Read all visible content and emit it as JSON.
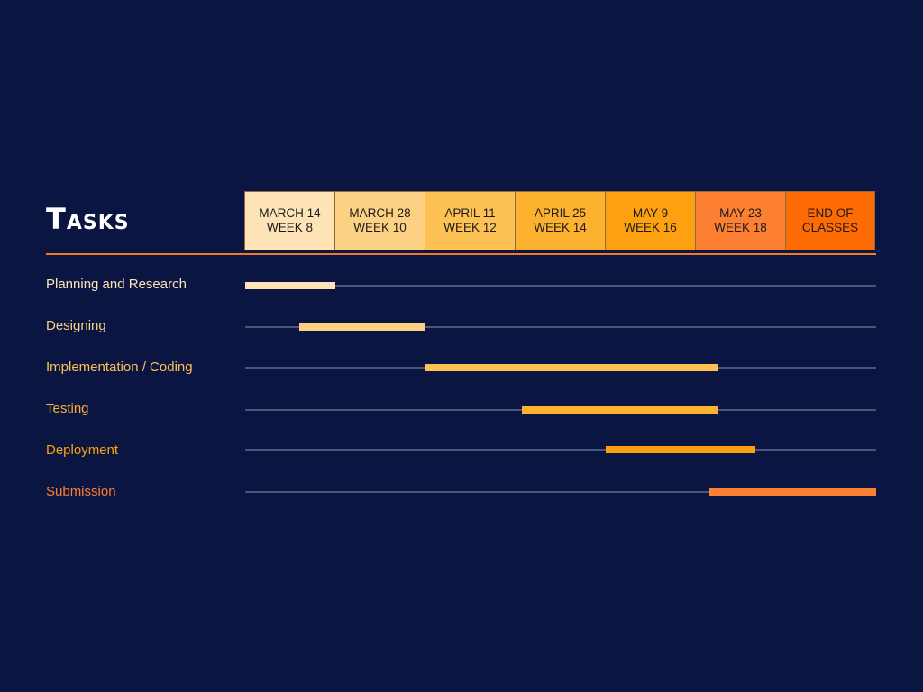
{
  "chart_data": {
    "type": "gantt",
    "title": "Tasks",
    "columns": [
      {
        "line1": "MARCH 14",
        "line2": "WEEK 8",
        "color": "#fde3b6"
      },
      {
        "line1": "MARCH 28",
        "line2": "WEEK 10",
        "color": "#fdd183"
      },
      {
        "line1": "APRIL 11",
        "line2": "WEEK 12",
        "color": "#fec254"
      },
      {
        "line1": "APRIL 25",
        "line2": "WEEK 14",
        "color": "#fcb12f"
      },
      {
        "line1": "MAY 9",
        "line2": "WEEK 16",
        "color": "#fda110"
      },
      {
        "line1": "MAY 23",
        "line2": "WEEK 18",
        "color": "#fd7f32"
      },
      {
        "line1": "END OF",
        "line2": "CLASSES",
        "color": "#fe6b04"
      }
    ],
    "tasks": [
      {
        "name": "Planning and Research",
        "start": 0.0,
        "end": 1.0,
        "color": "#fde3b6"
      },
      {
        "name": "Designing",
        "start": 0.6,
        "end": 2.0,
        "color": "#fdd183"
      },
      {
        "name": "Implementation / Coding",
        "start": 2.0,
        "end": 5.25,
        "color": "#fec254"
      },
      {
        "name": "Testing",
        "start": 3.07,
        "end": 5.25,
        "color": "#fcb12f"
      },
      {
        "name": "Deployment",
        "start": 4.0,
        "end": 5.66,
        "color": "#fda110"
      },
      {
        "name": "Submission",
        "start": 5.15,
        "end": 7.0,
        "color": "#fd7f32"
      }
    ],
    "x_range": [
      0,
      7
    ],
    "track_color": "#8e95ad"
  }
}
